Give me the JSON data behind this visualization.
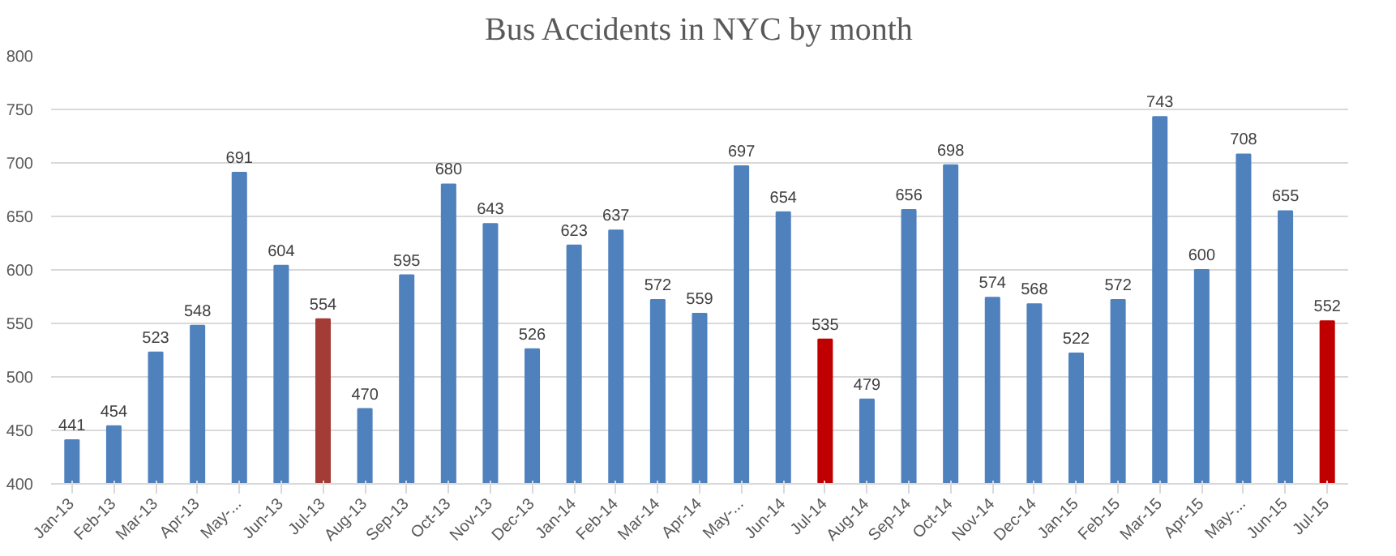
{
  "chart_data": {
    "type": "bar",
    "title": "Bus Accidents in NYC by month",
    "categories": [
      "Jan-13",
      "Feb-13",
      "Mar-13",
      "Apr-13",
      "May-...",
      "Jun-13",
      "Jul-13",
      "Aug-13",
      "Sep-13",
      "Oct-13",
      "Nov-13",
      "Dec-13",
      "Jan-14",
      "Feb-14",
      "Mar-14",
      "Apr-14",
      "May-...",
      "Jun-14",
      "Jul-14",
      "Aug-14",
      "Sep-14",
      "Oct-14",
      "Nov-14",
      "Dec-14",
      "Jan-15",
      "Feb-15",
      "Mar-15",
      "Apr-15",
      "May-...",
      "Jun-15",
      "Jul-15"
    ],
    "values": [
      441,
      454,
      523,
      548,
      691,
      604,
      554,
      470,
      595,
      680,
      643,
      526,
      623,
      637,
      572,
      559,
      697,
      654,
      535,
      479,
      656,
      698,
      574,
      568,
      522,
      572,
      743,
      600,
      708,
      655,
      552
    ],
    "colors": [
      "#4f81bd",
      "#4f81bd",
      "#4f81bd",
      "#4f81bd",
      "#4f81bd",
      "#4f81bd",
      "#a33b36",
      "#4f81bd",
      "#4f81bd",
      "#4f81bd",
      "#4f81bd",
      "#4f81bd",
      "#4f81bd",
      "#4f81bd",
      "#4f81bd",
      "#4f81bd",
      "#4f81bd",
      "#4f81bd",
      "#c00000",
      "#4f81bd",
      "#4f81bd",
      "#4f81bd",
      "#4f81bd",
      "#4f81bd",
      "#4f81bd",
      "#4f81bd",
      "#4f81bd",
      "#4f81bd",
      "#4f81bd",
      "#4f81bd",
      "#c00000"
    ],
    "ylim": [
      400,
      800
    ],
    "yticks": [
      400,
      450,
      500,
      550,
      600,
      650,
      700,
      750,
      800
    ],
    "grid": "y",
    "data_labels": true
  }
}
